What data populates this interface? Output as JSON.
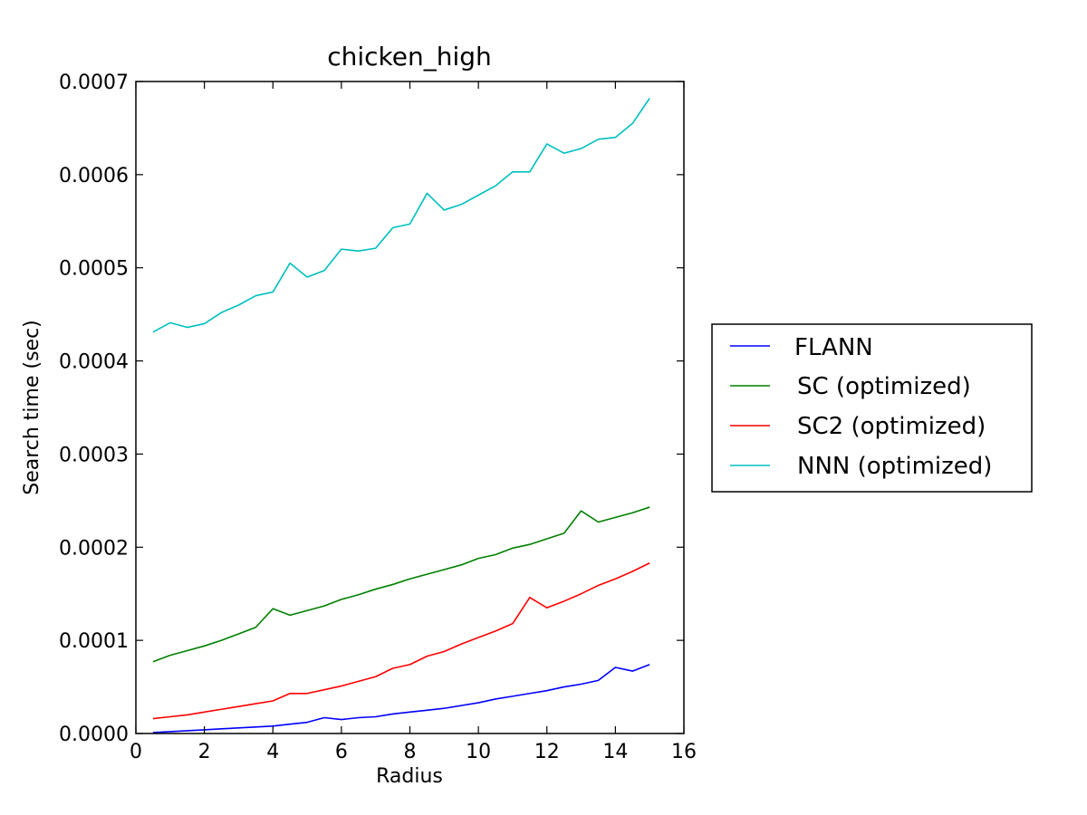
{
  "chart_data": {
    "type": "line",
    "title": "chicken_high",
    "xlabel": "Radius",
    "ylabel": "Search time (sec)",
    "xlim": [
      0,
      16
    ],
    "ylim": [
      0,
      0.0007
    ],
    "xticks": [
      0,
      2,
      4,
      6,
      8,
      10,
      12,
      14,
      16
    ],
    "xtick_labels": [
      "0",
      "2",
      "4",
      "6",
      "8",
      "10",
      "12",
      "14",
      "16"
    ],
    "yticks": [
      0,
      0.0001,
      0.0002,
      0.0003,
      0.0004,
      0.0005,
      0.0006,
      0.0007
    ],
    "ytick_labels": [
      "0.0000",
      "0.0001",
      "0.0002",
      "0.0003",
      "0.0004",
      "0.0005",
      "0.0006",
      "0.0007"
    ],
    "grid": false,
    "legend_position": "right, outside plot",
    "x": [
      0.5,
      1.0,
      1.5,
      2.0,
      2.5,
      3.0,
      3.5,
      4.0,
      4.5,
      5.0,
      5.5,
      6.0,
      6.5,
      7.0,
      7.5,
      8.0,
      8.5,
      9.0,
      9.5,
      10.0,
      10.5,
      11.0,
      11.5,
      12.0,
      12.5,
      13.0,
      13.5,
      14.0,
      14.5,
      15.0
    ],
    "series": [
      {
        "name": "FLANN",
        "color": "#0000ff",
        "values": [
          1e-06,
          2e-06,
          3e-06,
          4e-06,
          5e-06,
          6e-06,
          7e-06,
          8e-06,
          1e-05,
          1.2e-05,
          1.7e-05,
          1.5e-05,
          1.7e-05,
          1.8e-05,
          2.1e-05,
          2.3e-05,
          2.5e-05,
          2.7e-05,
          3e-05,
          3.3e-05,
          3.7e-05,
          4e-05,
          4.3e-05,
          4.6e-05,
          5e-05,
          5.3e-05,
          5.7e-05,
          7.1e-05,
          6.7e-05,
          7.4e-05
        ]
      },
      {
        "name": "SC (optimized)",
        "color": "#008000",
        "values": [
          7.7e-05,
          8.4e-05,
          8.9e-05,
          9.4e-05,
          0.0001,
          0.000107,
          0.000114,
          0.000134,
          0.000127,
          0.000132,
          0.000137,
          0.000144,
          0.000149,
          0.000155,
          0.00016,
          0.000166,
          0.000171,
          0.000176,
          0.000181,
          0.000188,
          0.000192,
          0.000199,
          0.000203,
          0.000209,
          0.000215,
          0.000239,
          0.000227,
          0.000232,
          0.000237,
          0.000243
        ]
      },
      {
        "name": "SC2 (optimized)",
        "color": "#ff0000",
        "values": [
          1.6e-05,
          1.8e-05,
          2e-05,
          2.3e-05,
          2.6e-05,
          2.9e-05,
          3.2e-05,
          3.5e-05,
          4.3e-05,
          4.3e-05,
          4.7e-05,
          5.1e-05,
          5.6e-05,
          6.1e-05,
          7e-05,
          7.4e-05,
          8.3e-05,
          8.8e-05,
          9.6e-05,
          0.000103,
          0.00011,
          0.000118,
          0.000146,
          0.000135,
          0.000142,
          0.00015,
          0.000159,
          0.000166,
          0.000174,
          0.000183
        ]
      },
      {
        "name": "NNN (optimized)",
        "color": "#00bfbf",
        "values": [
          0.000431,
          0.000441,
          0.000436,
          0.00044,
          0.000452,
          0.00046,
          0.00047,
          0.000474,
          0.000505,
          0.00049,
          0.000497,
          0.00052,
          0.000518,
          0.000521,
          0.000543,
          0.000547,
          0.00058,
          0.000562,
          0.000568,
          0.000578,
          0.000588,
          0.000603,
          0.000603,
          0.000633,
          0.000623,
          0.000628,
          0.000638,
          0.00064,
          0.000655,
          0.000682
        ]
      }
    ]
  }
}
